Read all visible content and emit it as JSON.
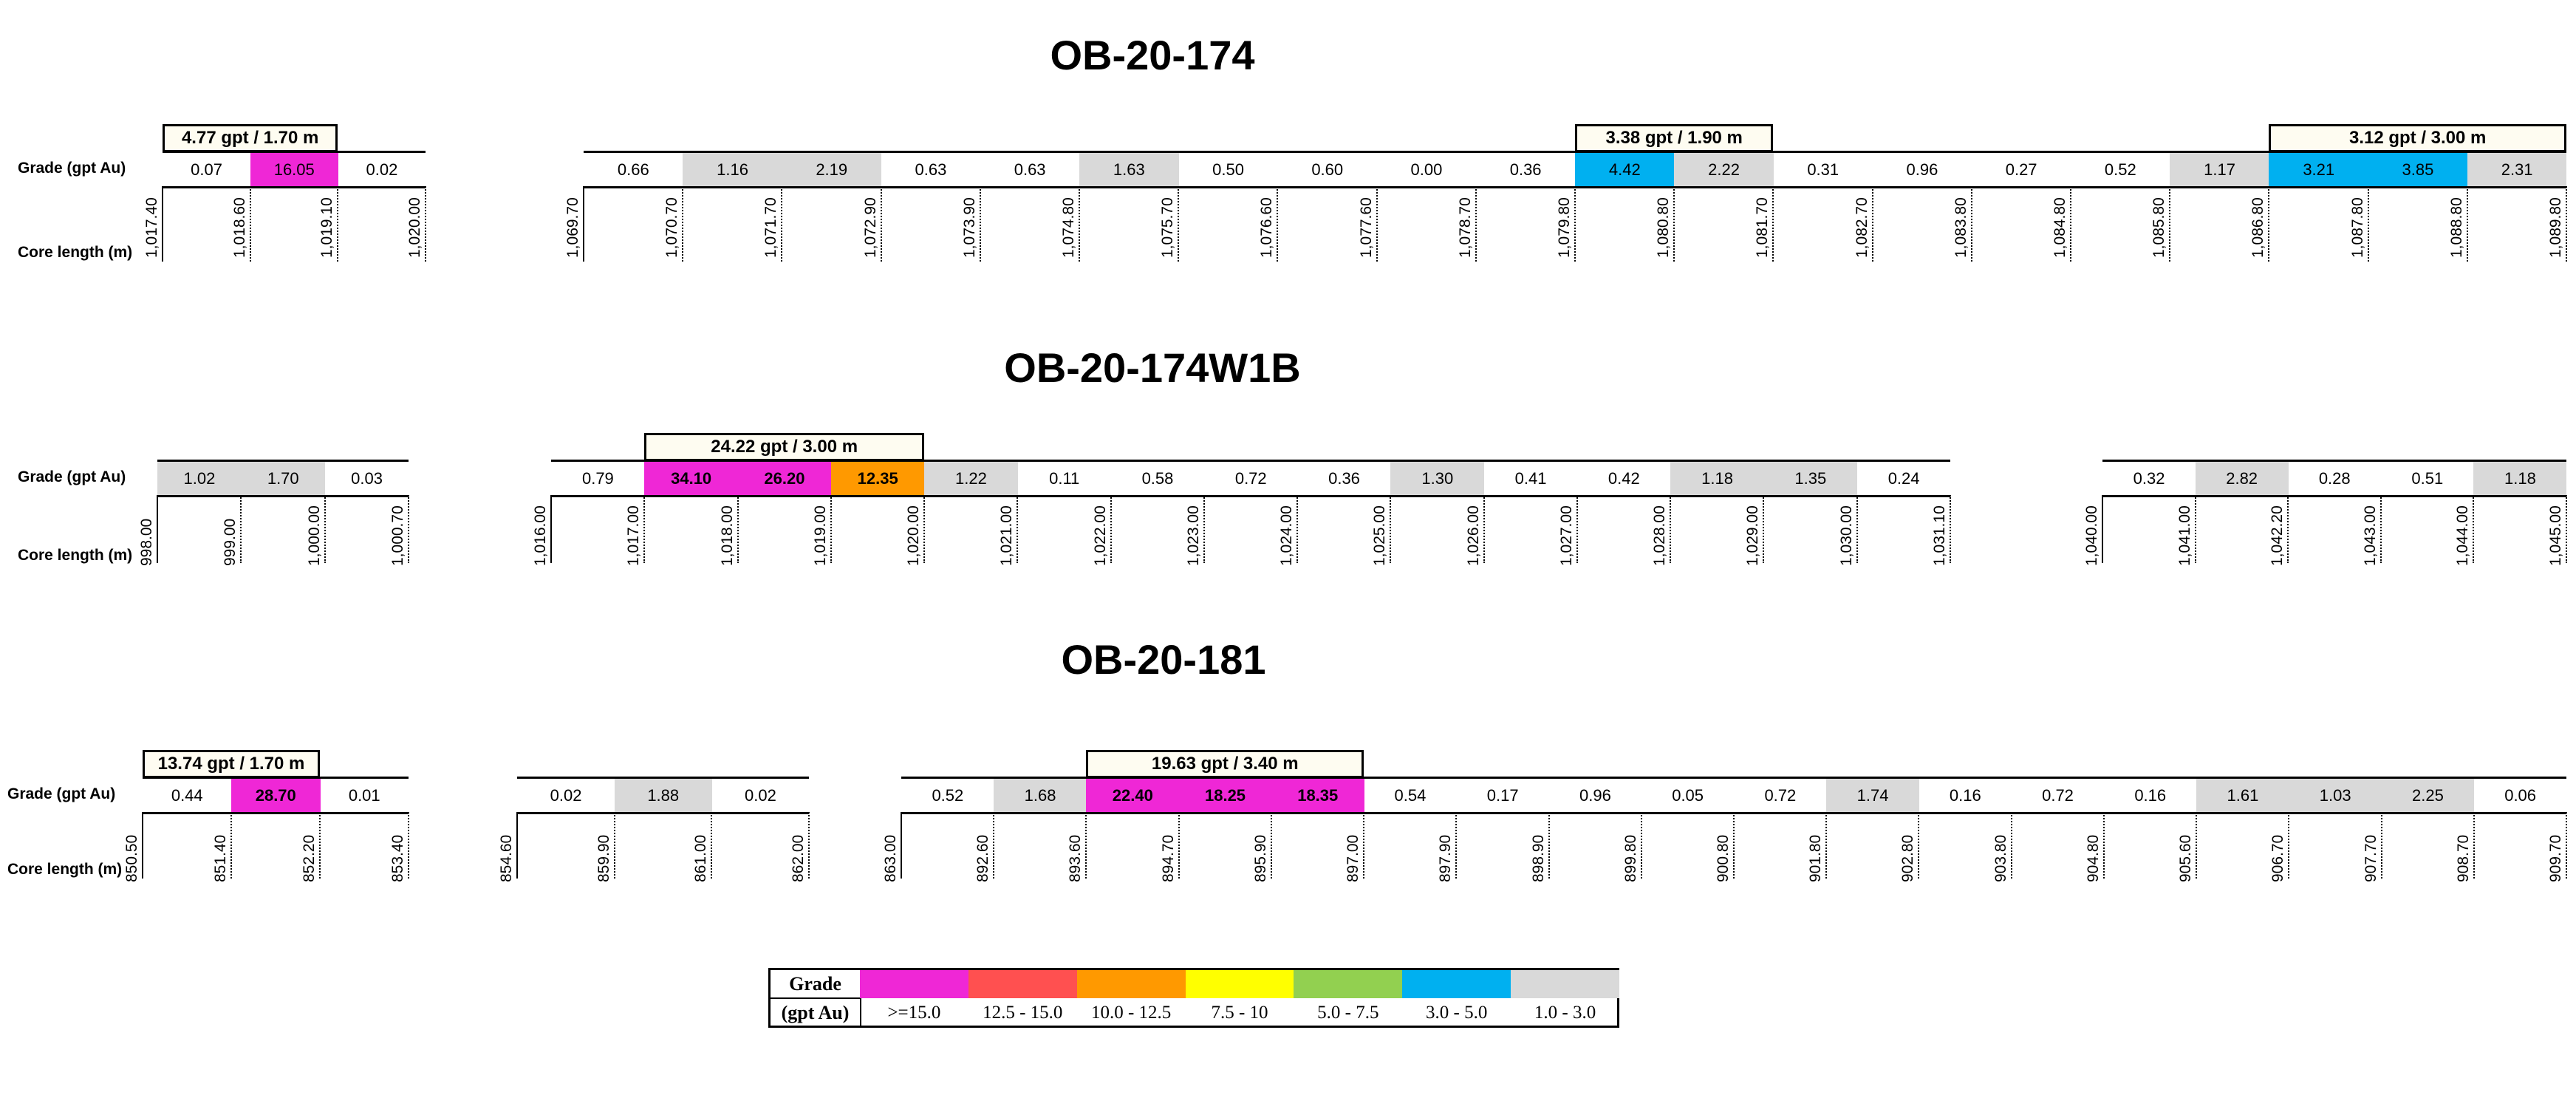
{
  "colors": {
    "magenta": "#ef27d6",
    "red": "#ff5050",
    "orange": "#ff9900",
    "yellow": "#ffff00",
    "green": "#92d050",
    "blue": "#00b0f0",
    "grey": "#d9d9d9",
    "intercept_bg": "#fefcf1"
  },
  "holes": [
    {
      "title": "OB-20-174",
      "grade_label": "Grade (gpt Au)",
      "core_label": "Core length (m)",
      "segments": [
        {
          "grades": [
            {
              "v": "0.07",
              "c": ""
            },
            {
              "v": "16.05",
              "c": "magenta"
            },
            {
              "v": "0.02",
              "c": ""
            }
          ],
          "depths": [
            "1,017.40",
            "1,018.60",
            "1,019.10",
            "1,020.00"
          ],
          "intercepts": [
            {
              "label": "4.77 gpt / 1.70 m",
              "from": 0,
              "to": 2
            }
          ]
        },
        {
          "grades": [
            {
              "v": "0.66",
              "c": ""
            },
            {
              "v": "1.16",
              "c": "grey"
            },
            {
              "v": "2.19",
              "c": "grey"
            },
            {
              "v": "0.63",
              "c": ""
            },
            {
              "v": "0.63",
              "c": ""
            },
            {
              "v": "1.63",
              "c": "grey"
            },
            {
              "v": "0.50",
              "c": ""
            },
            {
              "v": "0.60",
              "c": ""
            },
            {
              "v": "0.00",
              "c": ""
            },
            {
              "v": "0.36",
              "c": ""
            },
            {
              "v": "4.42",
              "c": "blue"
            },
            {
              "v": "2.22",
              "c": "grey"
            },
            {
              "v": "0.31",
              "c": ""
            },
            {
              "v": "0.96",
              "c": ""
            },
            {
              "v": "0.27",
              "c": ""
            },
            {
              "v": "0.52",
              "c": ""
            },
            {
              "v": "1.17",
              "c": "grey"
            },
            {
              "v": "3.21",
              "c": "blue"
            },
            {
              "v": "3.85",
              "c": "blue"
            },
            {
              "v": "2.31",
              "c": "grey"
            }
          ],
          "depths": [
            "1,069.70",
            "1,070.70",
            "1,071.70",
            "1,072.90",
            "1,073.90",
            "1,074.80",
            "1,075.70",
            "1,076.60",
            "1,077.60",
            "1,078.70",
            "1,079.80",
            "1,080.80",
            "1,081.70",
            "1,082.70",
            "1,083.80",
            "1,084.80",
            "1,085.80",
            "1,086.80",
            "1,087.80",
            "1,088.80",
            "1,089.80"
          ],
          "intercepts": [
            {
              "label": "3.38 gpt / 1.90 m",
              "from": 10,
              "to": 12
            },
            {
              "label": "3.12 gpt / 3.00 m",
              "from": 17,
              "to": 20
            }
          ]
        }
      ]
    },
    {
      "title": "OB-20-174W1B",
      "grade_label": "Grade (gpt Au)",
      "core_label": "Core length (m)",
      "segments": [
        {
          "grades": [
            {
              "v": "1.02",
              "c": "grey"
            },
            {
              "v": "1.70",
              "c": "grey"
            },
            {
              "v": "0.03",
              "c": ""
            }
          ],
          "depths": [
            "998.00",
            "999.00",
            "1,000.00",
            "1,000.70"
          ],
          "intercepts": []
        },
        {
          "grades": [
            {
              "v": "0.79",
              "c": ""
            },
            {
              "v": "34.10",
              "c": "magenta",
              "b": true
            },
            {
              "v": "26.20",
              "c": "magenta",
              "b": true
            },
            {
              "v": "12.35",
              "c": "orange",
              "b": true
            },
            {
              "v": "1.22",
              "c": "grey"
            },
            {
              "v": "0.11",
              "c": ""
            },
            {
              "v": "0.58",
              "c": ""
            },
            {
              "v": "0.72",
              "c": ""
            },
            {
              "v": "0.36",
              "c": ""
            },
            {
              "v": "1.30",
              "c": "grey"
            },
            {
              "v": "0.41",
              "c": ""
            },
            {
              "v": "0.42",
              "c": ""
            },
            {
              "v": "1.18",
              "c": "grey"
            },
            {
              "v": "1.35",
              "c": "grey"
            },
            {
              "v": "0.24",
              "c": ""
            }
          ],
          "depths": [
            "1,016.00",
            "1,017.00",
            "1,018.00",
            "1,019.00",
            "1,020.00",
            "1,021.00",
            "1,022.00",
            "1,023.00",
            "1,024.00",
            "1,025.00",
            "1,026.00",
            "1,027.00",
            "1,028.00",
            "1,029.00",
            "1,030.00",
            "1,031.10"
          ],
          "intercepts": [
            {
              "label": "24.22 gpt / 3.00 m",
              "from": 1,
              "to": 4
            }
          ]
        },
        {
          "grades": [
            {
              "v": "0.32",
              "c": ""
            },
            {
              "v": "2.82",
              "c": "grey"
            },
            {
              "v": "0.28",
              "c": ""
            },
            {
              "v": "0.51",
              "c": ""
            },
            {
              "v": "1.18",
              "c": "grey"
            }
          ],
          "depths": [
            "1,040.00",
            "1,041.00",
            "1,042.20",
            "1,043.00",
            "1,044.00",
            "1,045.00"
          ],
          "intercepts": []
        }
      ]
    },
    {
      "title": "OB-20-181",
      "grade_label": "Grade (gpt Au)",
      "core_label": "Core length (m)",
      "segments": [
        {
          "grades": [
            {
              "v": "0.44",
              "c": ""
            },
            {
              "v": "28.70",
              "c": "magenta",
              "b": true
            },
            {
              "v": "0.01",
              "c": ""
            }
          ],
          "depths": [
            "850.50",
            "851.40",
            "852.20",
            "853.40"
          ],
          "intercepts": [
            {
              "label": "13.74 gpt / 1.70 m",
              "from": 0,
              "to": 2
            }
          ]
        },
        {
          "grades": [
            {
              "v": "0.02",
              "c": ""
            },
            {
              "v": "1.88",
              "c": "grey"
            },
            {
              "v": "0.02",
              "c": ""
            }
          ],
          "depths": [
            "854.60",
            "859.90",
            "861.00",
            "862.00"
          ],
          "intercepts": []
        },
        {
          "grades": [
            {
              "v": "0.52",
              "c": ""
            },
            {
              "v": "1.68",
              "c": "grey"
            },
            {
              "v": "22.40",
              "c": "magenta",
              "b": true
            },
            {
              "v": "18.25",
              "c": "magenta",
              "b": true
            },
            {
              "v": "18.35",
              "c": "magenta",
              "b": true
            },
            {
              "v": "0.54",
              "c": ""
            },
            {
              "v": "0.17",
              "c": ""
            },
            {
              "v": "0.96",
              "c": ""
            },
            {
              "v": "0.05",
              "c": ""
            },
            {
              "v": "0.72",
              "c": ""
            },
            {
              "v": "1.74",
              "c": "grey"
            },
            {
              "v": "0.16",
              "c": ""
            },
            {
              "v": "0.72",
              "c": ""
            },
            {
              "v": "0.16",
              "c": ""
            },
            {
              "v": "1.61",
              "c": "grey"
            },
            {
              "v": "1.03",
              "c": "grey"
            },
            {
              "v": "2.25",
              "c": "grey"
            },
            {
              "v": "0.06",
              "c": ""
            }
          ],
          "depths": [
            "863.00",
            "892.60",
            "893.60",
            "894.70",
            "895.90",
            "897.00",
            "897.90",
            "898.90",
            "899.80",
            "900.80",
            "901.80",
            "902.80",
            "903.80",
            "904.80",
            "905.60",
            "906.70",
            "907.70",
            "908.70",
            "909.70"
          ],
          "intercepts": [
            {
              "label": "19.63 gpt / 3.40 m",
              "from": 2,
              "to": 5
            }
          ]
        }
      ]
    }
  ],
  "legend": {
    "title_line1": "Grade",
    "title_line2": "(gpt Au)",
    "items": [
      {
        "label": ">=15.0",
        "color": "magenta"
      },
      {
        "label": "12.5 - 15.0",
        "color": "red"
      },
      {
        "label": "10.0 - 12.5",
        "color": "orange"
      },
      {
        "label": "7.5 - 10",
        "color": "yellow"
      },
      {
        "label": "5.0 - 7.5",
        "color": "green"
      },
      {
        "label": "3.0 - 5.0",
        "color": "blue"
      },
      {
        "label": "1.0 - 3.0",
        "color": "grey"
      }
    ]
  }
}
